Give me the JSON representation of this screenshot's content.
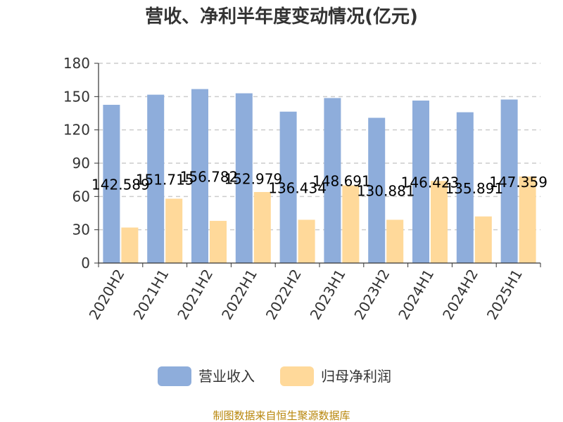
{
  "chart_data": {
    "type": "bar",
    "title": "营收、净利半年度变动情况(亿元)",
    "xlabel": "",
    "ylabel": "",
    "categories": [
      "2020H2",
      "2021H1",
      "2021H2",
      "2022H1",
      "2022H2",
      "2023H1",
      "2023H2",
      "2024H1",
      "2024H2",
      "2025H1"
    ],
    "series": [
      {
        "name": "营业收入",
        "color": "#8eaddb",
        "values": [
          142.589,
          151.715,
          156.782,
          152.979,
          136.434,
          148.691,
          130.881,
          146.423,
          135.891,
          147.359
        ],
        "labels": [
          "142.589",
          "151.715",
          "156.782",
          "152.979",
          "136.434",
          "148.691",
          "130.881",
          "146.423",
          "135.891",
          "147.359"
        ]
      },
      {
        "name": "归母净利润",
        "color": "#ffd99a",
        "values": [
          32,
          58,
          38,
          64,
          39,
          70,
          39,
          74,
          42,
          78
        ]
      }
    ],
    "ylim": [
      0,
      180
    ],
    "yticks": [
      0,
      30,
      60,
      90,
      120,
      150,
      180
    ],
    "grid": true,
    "legend_position": "bottom"
  },
  "source_note": "制图数据来自恒生聚源数据库"
}
